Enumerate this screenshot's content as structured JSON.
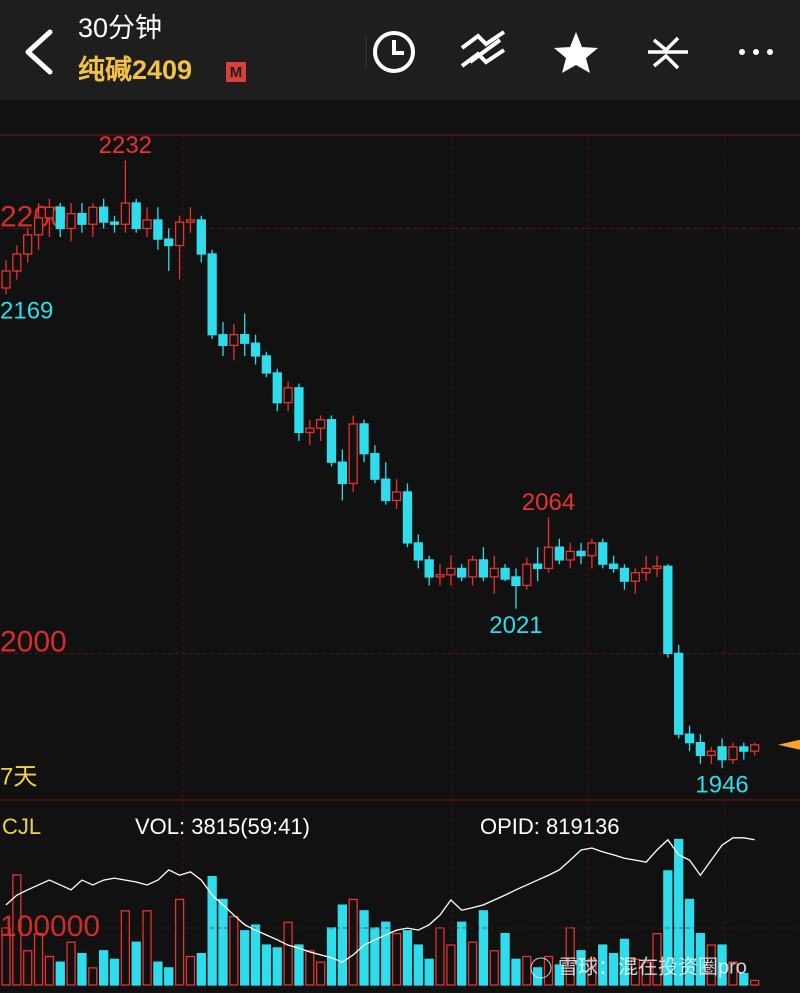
{
  "header": {
    "period": "30分钟",
    "symbol": "纯碱2409",
    "badge": "M"
  },
  "chart_data": [
    {
      "type": "candlestick",
      "open": [
        2172,
        2180,
        2188,
        2197,
        2205,
        2210,
        2200,
        2207,
        2202,
        2210,
        2203,
        2202,
        2212,
        2200,
        2204,
        2195,
        2192,
        2203,
        2204,
        2188,
        2150,
        2145,
        2150,
        2146,
        2140,
        2132,
        2118,
        2125,
        2104,
        2106,
        2110,
        2090,
        2080,
        2108,
        2094,
        2082,
        2072,
        2076,
        2052,
        2044,
        2036,
        2037,
        2040,
        2036,
        2044,
        2036,
        2040,
        2036,
        2032,
        2042,
        2040,
        2050,
        2044,
        2048,
        2046,
        2052,
        2042,
        2040,
        2034,
        2038,
        2040,
        2041,
        2000,
        1962,
        1958,
        1952,
        1956,
        1950,
        1956,
        1954
      ],
      "high": [
        2185,
        2192,
        2200,
        2212,
        2214,
        2212,
        2212,
        2212,
        2212,
        2214,
        2206,
        2232,
        2214,
        2210,
        2210,
        2200,
        2206,
        2210,
        2206,
        2190,
        2156,
        2155,
        2160,
        2150,
        2142,
        2134,
        2128,
        2127,
        2110,
        2112,
        2112,
        2096,
        2112,
        2110,
        2098,
        2090,
        2082,
        2080,
        2056,
        2046,
        2042,
        2046,
        2042,
        2046,
        2050,
        2046,
        2042,
        2040,
        2045,
        2050,
        2064,
        2054,
        2052,
        2052,
        2054,
        2054,
        2046,
        2042,
        2040,
        2046,
        2046,
        2042,
        2004,
        1966,
        1962,
        1956,
        1960,
        1958,
        1958,
        1958
      ],
      "low": [
        2169,
        2176,
        2184,
        2190,
        2196,
        2196,
        2194,
        2198,
        2196,
        2200,
        2198,
        2198,
        2198,
        2196,
        2190,
        2180,
        2176,
        2198,
        2184,
        2148,
        2140,
        2138,
        2140,
        2136,
        2130,
        2114,
        2114,
        2100,
        2098,
        2100,
        2088,
        2072,
        2076,
        2090,
        2080,
        2070,
        2068,
        2050,
        2040,
        2032,
        2032,
        2032,
        2034,
        2032,
        2034,
        2028,
        2034,
        2021,
        2030,
        2034,
        2038,
        2042,
        2040,
        2042,
        2040,
        2040,
        2038,
        2030,
        2028,
        2034,
        2036,
        1998,
        1960,
        1954,
        1948,
        1948,
        1946,
        1948,
        1950,
        1952
      ],
      "close": [
        2180,
        2188,
        2197,
        2205,
        2210,
        2200,
        2207,
        2202,
        2210,
        2203,
        2202,
        2212,
        2200,
        2204,
        2195,
        2192,
        2203,
        2204,
        2188,
        2150,
        2145,
        2150,
        2146,
        2140,
        2132,
        2118,
        2125,
        2104,
        2106,
        2110,
        2090,
        2080,
        2108,
        2094,
        2082,
        2072,
        2076,
        2052,
        2044,
        2036,
        2037,
        2040,
        2036,
        2044,
        2036,
        2040,
        2035,
        2032,
        2042,
        2040,
        2050,
        2044,
        2048,
        2046,
        2052,
        2042,
        2040,
        2034,
        2038,
        2040,
        2041,
        2000,
        1962,
        1958,
        1952,
        1954,
        1950,
        1956,
        1954,
        1957
      ],
      "ylim": [
        1931,
        2244
      ],
      "yticks": [
        2200,
        2000
      ],
      "grid": true,
      "up_color": "#e8322f",
      "down_color": "#2fdcec",
      "last_marker_color": "#f5a623",
      "annotations": [
        "2232",
        "2169",
        "2064",
        "2021",
        "1946"
      ],
      "period_note": "7天"
    },
    {
      "type": "volume",
      "label": "CJL",
      "indicators": [
        "VOL: 3815(59:41)",
        "OPID: 819136"
      ],
      "volume": [
        100000,
        193000,
        60000,
        90000,
        50000,
        40000,
        75000,
        55000,
        30000,
        60000,
        45000,
        130000,
        75000,
        130000,
        40000,
        30000,
        150000,
        50000,
        55000,
        190000,
        150000,
        120000,
        95000,
        105000,
        70000,
        65000,
        110000,
        70000,
        60000,
        40000,
        100000,
        140000,
        150000,
        130000,
        100000,
        110000,
        90000,
        95000,
        70000,
        45000,
        100000,
        70000,
        110000,
        75000,
        130000,
        60000,
        90000,
        45000,
        50000,
        30000,
        50000,
        35000,
        100000,
        60000,
        45000,
        70000,
        55000,
        80000,
        45000,
        40000,
        90000,
        200000,
        255000,
        150000,
        90000,
        70000,
        70000,
        40000,
        20000,
        8000
      ],
      "oi": [
        806500,
        808500,
        809600,
        810600,
        811600,
        810600,
        809600,
        811600,
        810600,
        811600,
        812000,
        811600,
        811200,
        810600,
        811600,
        813700,
        812600,
        813300,
        811600,
        808500,
        806500,
        804400,
        802400,
        801300,
        800300,
        799300,
        798200,
        797600,
        796800,
        796200,
        795600,
        794700,
        796200,
        798200,
        799300,
        800300,
        801300,
        801700,
        801300,
        802400,
        804400,
        807500,
        805400,
        805900,
        806500,
        807500,
        808500,
        809600,
        810600,
        811600,
        812600,
        813700,
        815700,
        817800,
        818200,
        817400,
        816800,
        816100,
        815700,
        815300,
        817800,
        819900,
        816800,
        815700,
        812600,
        815700,
        818800,
        820300,
        820300,
        819900
      ],
      "ylim": [
        0,
        298000
      ],
      "yticks": [
        100000
      ],
      "y2lim": [
        790000,
        825000
      ],
      "line_color": "#ffffff"
    }
  ],
  "watermark": "雪球：混在投资圈pro"
}
